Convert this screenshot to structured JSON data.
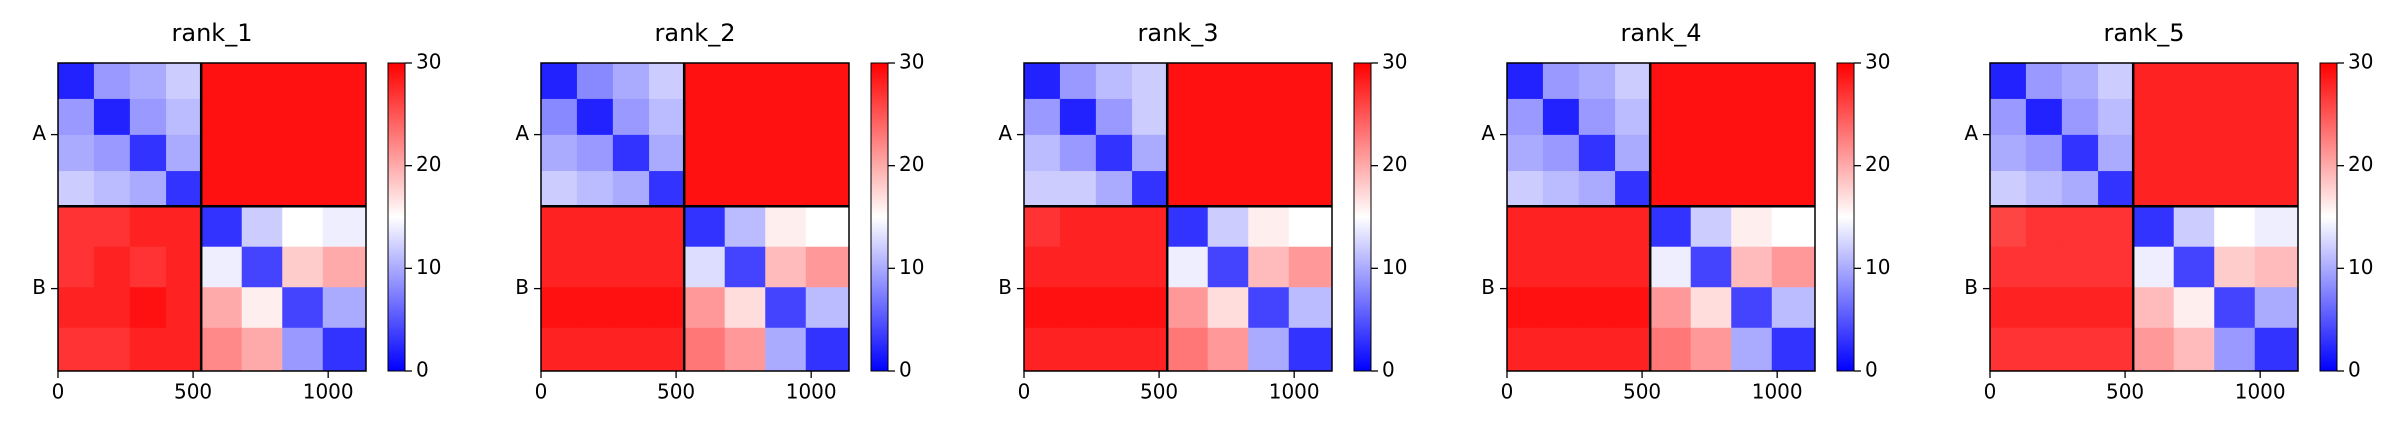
{
  "chart_data": [
    {
      "type": "heatmap",
      "title": "rank_1",
      "x_edges": [
        0,
        133,
        266,
        400,
        530,
        680,
        830,
        980,
        1140
      ],
      "y_edges": [
        0,
        133,
        266,
        400,
        530,
        680,
        830,
        980,
        1140
      ],
      "values": [
        [
          2,
          9,
          10,
          12,
          29,
          29,
          29,
          29
        ],
        [
          9,
          2,
          9,
          11,
          29,
          29,
          29,
          29
        ],
        [
          10,
          9,
          3,
          10,
          29,
          29,
          29,
          29
        ],
        [
          12,
          11,
          10,
          3,
          29,
          29,
          29,
          29
        ],
        [
          27,
          27,
          28,
          28,
          3,
          12,
          15,
          14
        ],
        [
          27,
          28,
          27,
          28,
          14,
          4,
          18,
          20
        ],
        [
          28,
          28,
          29,
          28,
          20,
          16,
          4,
          10
        ],
        [
          27,
          27,
          28,
          28,
          22,
          20,
          9,
          3
        ]
      ],
      "xlim": [
        0,
        1140
      ],
      "ylim": [
        1140,
        0
      ],
      "xticks": [
        0,
        500,
        1000
      ],
      "yticks": [
        {
          "value": 265,
          "label": "A"
        },
        {
          "value": 835,
          "label": "B"
        }
      ],
      "boundaries": [
        530
      ],
      "clim": [
        0,
        30
      ],
      "cticks": [
        0,
        10,
        20,
        30
      ],
      "colormap": [
        "#0000ff",
        "#ffffff",
        "#ff0000"
      ]
    },
    {
      "type": "heatmap",
      "title": "rank_2",
      "x_edges": [
        0,
        133,
        266,
        400,
        530,
        680,
        830,
        980,
        1140
      ],
      "y_edges": [
        0,
        133,
        266,
        400,
        530,
        680,
        830,
        980,
        1140
      ],
      "values": [
        [
          2,
          8,
          10,
          12,
          29,
          29,
          29,
          29
        ],
        [
          8,
          2,
          9,
          11,
          29,
          29,
          29,
          29
        ],
        [
          10,
          9,
          3,
          10,
          29,
          29,
          29,
          29
        ],
        [
          12,
          11,
          10,
          3,
          29,
          29,
          29,
          29
        ],
        [
          28,
          28,
          28,
          28,
          3,
          11,
          16,
          15
        ],
        [
          28,
          28,
          28,
          28,
          13,
          4,
          19,
          21
        ],
        [
          29,
          29,
          29,
          29,
          21,
          17,
          4,
          11
        ],
        [
          28,
          28,
          28,
          28,
          23,
          21,
          10,
          3
        ]
      ],
      "xlim": [
        0,
        1140
      ],
      "ylim": [
        1140,
        0
      ],
      "xticks": [
        0,
        500,
        1000
      ],
      "yticks": [
        {
          "value": 265,
          "label": "A"
        },
        {
          "value": 835,
          "label": "B"
        }
      ],
      "boundaries": [
        530
      ],
      "clim": [
        0,
        30
      ],
      "cticks": [
        0,
        10,
        20,
        30
      ],
      "colormap": [
        "#0000ff",
        "#ffffff",
        "#ff0000"
      ]
    },
    {
      "type": "heatmap",
      "title": "rank_3",
      "x_edges": [
        0,
        133,
        266,
        400,
        530,
        680,
        830,
        980,
        1140
      ],
      "y_edges": [
        0,
        133,
        266,
        400,
        530,
        680,
        830,
        980,
        1140
      ],
      "values": [
        [
          2,
          9,
          11,
          12,
          29,
          29,
          29,
          29
        ],
        [
          9,
          2,
          9,
          12,
          29,
          29,
          29,
          29
        ],
        [
          11,
          9,
          3,
          10,
          29,
          29,
          29,
          29
        ],
        [
          12,
          12,
          10,
          3,
          29,
          29,
          29,
          29
        ],
        [
          27,
          28,
          28,
          28,
          3,
          12,
          16,
          15
        ],
        [
          28,
          28,
          28,
          28,
          14,
          4,
          19,
          21
        ],
        [
          29,
          29,
          29,
          29,
          21,
          17,
          4,
          11
        ],
        [
          28,
          28,
          28,
          28,
          23,
          21,
          10,
          3
        ]
      ],
      "xlim": [
        0,
        1140
      ],
      "ylim": [
        1140,
        0
      ],
      "xticks": [
        0,
        500,
        1000
      ],
      "yticks": [
        {
          "value": 265,
          "label": "A"
        },
        {
          "value": 835,
          "label": "B"
        }
      ],
      "boundaries": [
        530
      ],
      "clim": [
        0,
        30
      ],
      "cticks": [
        0,
        10,
        20,
        30
      ],
      "colormap": [
        "#0000ff",
        "#ffffff",
        "#ff0000"
      ]
    },
    {
      "type": "heatmap",
      "title": "rank_4",
      "x_edges": [
        0,
        133,
        266,
        400,
        530,
        680,
        830,
        980,
        1140
      ],
      "y_edges": [
        0,
        133,
        266,
        400,
        530,
        680,
        830,
        980,
        1140
      ],
      "values": [
        [
          2,
          9,
          10,
          12,
          29,
          29,
          29,
          29
        ],
        [
          9,
          2,
          9,
          11,
          29,
          29,
          29,
          29
        ],
        [
          10,
          9,
          3,
          10,
          29,
          29,
          29,
          29
        ],
        [
          12,
          11,
          10,
          3,
          29,
          29,
          29,
          29
        ],
        [
          28,
          28,
          28,
          28,
          3,
          12,
          16,
          15
        ],
        [
          28,
          28,
          28,
          28,
          14,
          4,
          19,
          21
        ],
        [
          29,
          29,
          29,
          29,
          21,
          17,
          4,
          11
        ],
        [
          28,
          28,
          28,
          28,
          23,
          21,
          10,
          3
        ]
      ],
      "xlim": [
        0,
        1140
      ],
      "ylim": [
        1140,
        0
      ],
      "xticks": [
        0,
        500,
        1000
      ],
      "yticks": [
        {
          "value": 265,
          "label": "A"
        },
        {
          "value": 835,
          "label": "B"
        }
      ],
      "boundaries": [
        530
      ],
      "clim": [
        0,
        30
      ],
      "cticks": [
        0,
        10,
        20,
        30
      ],
      "colormap": [
        "#0000ff",
        "#ffffff",
        "#ff0000"
      ]
    },
    {
      "type": "heatmap",
      "title": "rank_5",
      "x_edges": [
        0,
        133,
        266,
        400,
        530,
        680,
        830,
        980,
        1140
      ],
      "y_edges": [
        0,
        133,
        266,
        400,
        530,
        680,
        830,
        980,
        1140
      ],
      "values": [
        [
          2,
          9,
          10,
          12,
          28,
          28,
          28,
          28
        ],
        [
          9,
          2,
          9,
          11,
          28,
          28,
          28,
          28
        ],
        [
          10,
          9,
          3,
          10,
          28,
          28,
          28,
          28
        ],
        [
          12,
          11,
          10,
          3,
          28,
          28,
          28,
          28
        ],
        [
          26,
          27,
          27,
          27,
          3,
          12,
          15,
          14
        ],
        [
          27,
          27,
          27,
          27,
          14,
          4,
          18,
          19
        ],
        [
          28,
          28,
          28,
          28,
          19,
          16,
          4,
          10
        ],
        [
          27,
          27,
          27,
          27,
          21,
          19,
          9,
          3
        ]
      ],
      "xlim": [
        0,
        1140
      ],
      "ylim": [
        1140,
        0
      ],
      "xticks": [
        0,
        500,
        1000
      ],
      "yticks": [
        {
          "value": 265,
          "label": "A"
        },
        {
          "value": 835,
          "label": "B"
        }
      ],
      "boundaries": [
        530
      ],
      "clim": [
        0,
        30
      ],
      "cticks": [
        0,
        10,
        20,
        30
      ],
      "colormap": [
        "#0000ff",
        "#ffffff",
        "#ff0000"
      ]
    }
  ]
}
